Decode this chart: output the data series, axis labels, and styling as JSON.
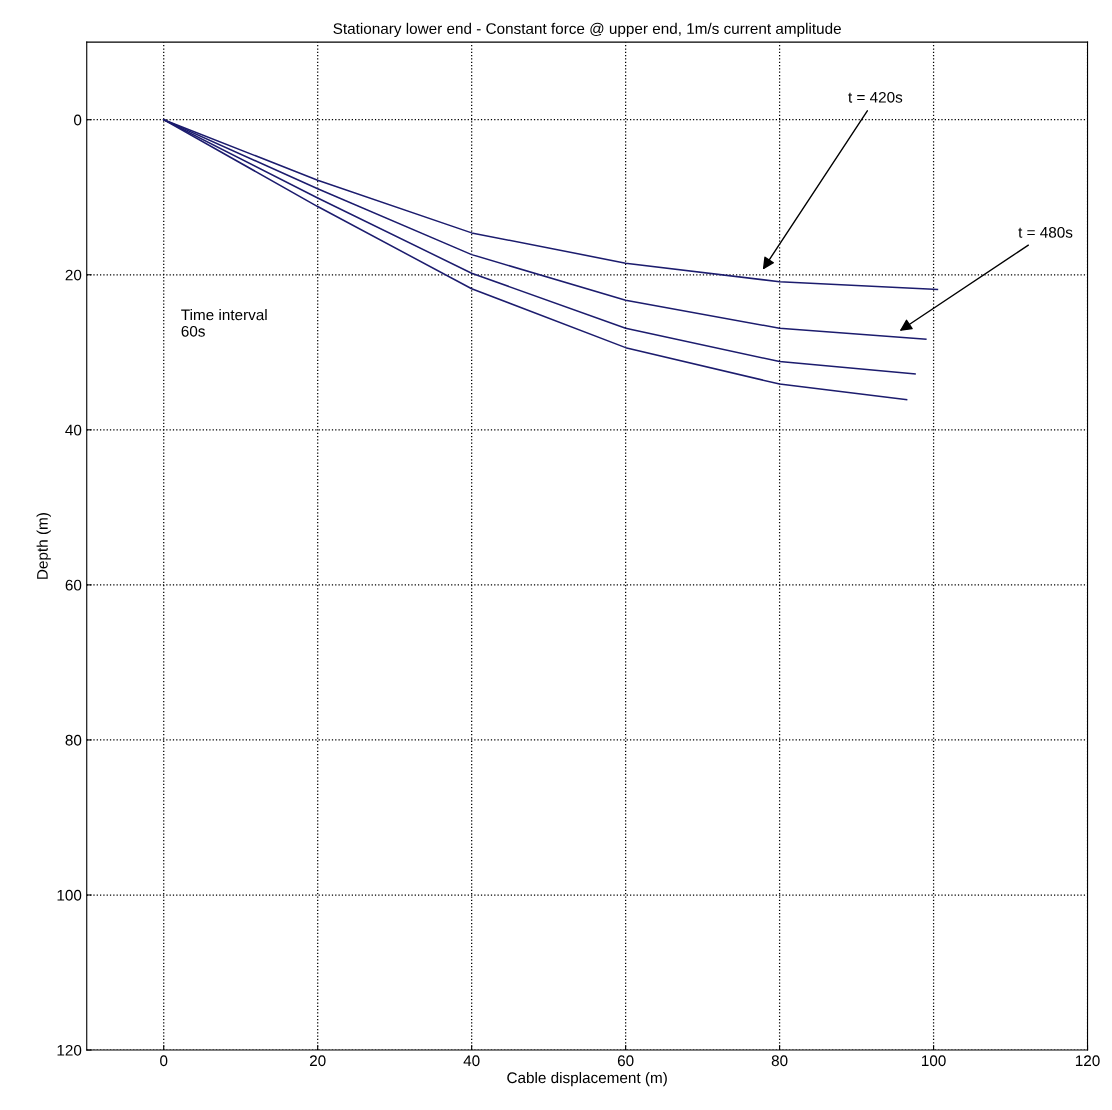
{
  "chart_data": {
    "type": "line",
    "title": "Stationary lower end - Constant force @ upper end, 1m/s current amplitude",
    "xlabel": "Cable displacement (m)",
    "ylabel": "Depth (m)",
    "series": [
      {
        "color": "#1c1c6e",
        "x": [
          0,
          20,
          40,
          60,
          80,
          100.5
        ],
        "values": [
          0,
          7.8,
          14.6,
          18.5,
          20.9,
          21.9
        ]
      },
      {
        "color": "#1c1c6e",
        "x": [
          0,
          20,
          40,
          60,
          80,
          99
        ],
        "values": [
          0,
          8.9,
          17.4,
          23.3,
          26.9,
          28.3
        ]
      },
      {
        "color": "#1c1c6e",
        "x": [
          0,
          20,
          40,
          60,
          80,
          97.6
        ],
        "values": [
          0,
          10.1,
          19.8,
          26.9,
          31.2,
          32.8
        ]
      },
      {
        "color": "#1c1c6e",
        "x": [
          0,
          20,
          40,
          60,
          80,
          96.5
        ],
        "values": [
          0,
          11.2,
          21.8,
          29.4,
          34.1,
          36.1
        ]
      }
    ],
    "annotations": [
      "t = 420s",
      "t = 480s",
      "Time interval\n60s"
    ],
    "xlim": [
      -10,
      120
    ],
    "ylim": [
      120,
      -10
    ],
    "xticks": [
      0,
      20,
      40,
      60,
      80,
      100,
      120
    ],
    "yticks": [
      0,
      20,
      40,
      60,
      80,
      100,
      120
    ],
    "grid": true,
    "line_style": "solid",
    "marker": "none"
  }
}
